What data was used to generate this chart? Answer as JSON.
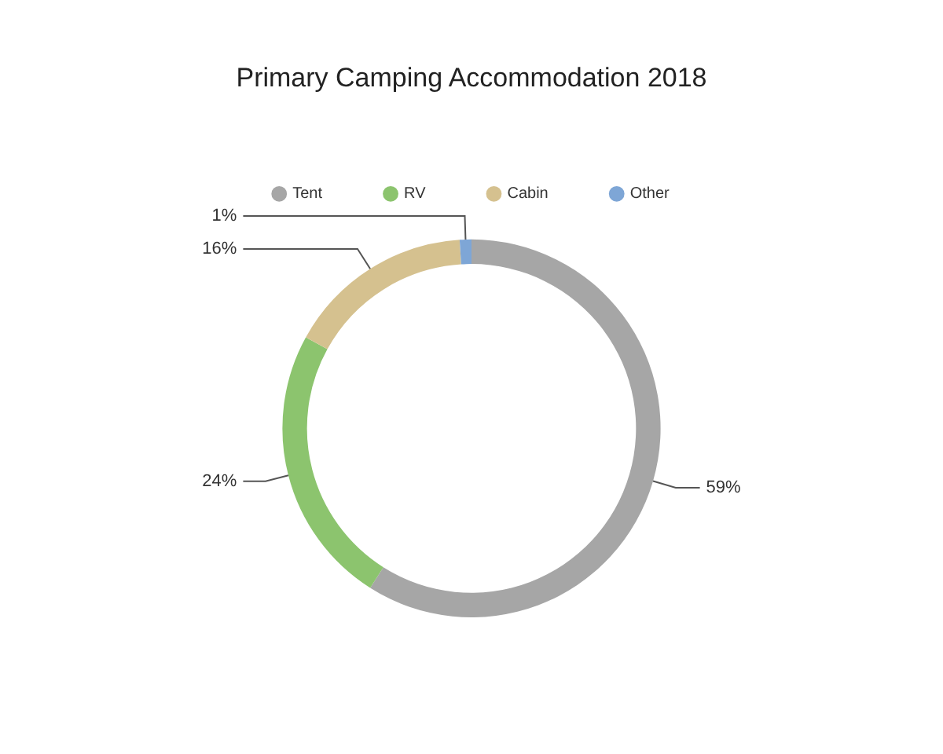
{
  "chart_data": {
    "type": "donut",
    "title": "Primary Camping Accommodation 2018",
    "categories": [
      "Tent",
      "RV",
      "Cabin",
      "Other"
    ],
    "values": [
      59,
      24,
      16,
      1
    ],
    "colors": [
      "#a6a6a6",
      "#8cc46e",
      "#d5c18f",
      "#7ea6d6"
    ],
    "value_labels": [
      "59%",
      "24%",
      "16%",
      "1%"
    ],
    "legend": "top"
  }
}
